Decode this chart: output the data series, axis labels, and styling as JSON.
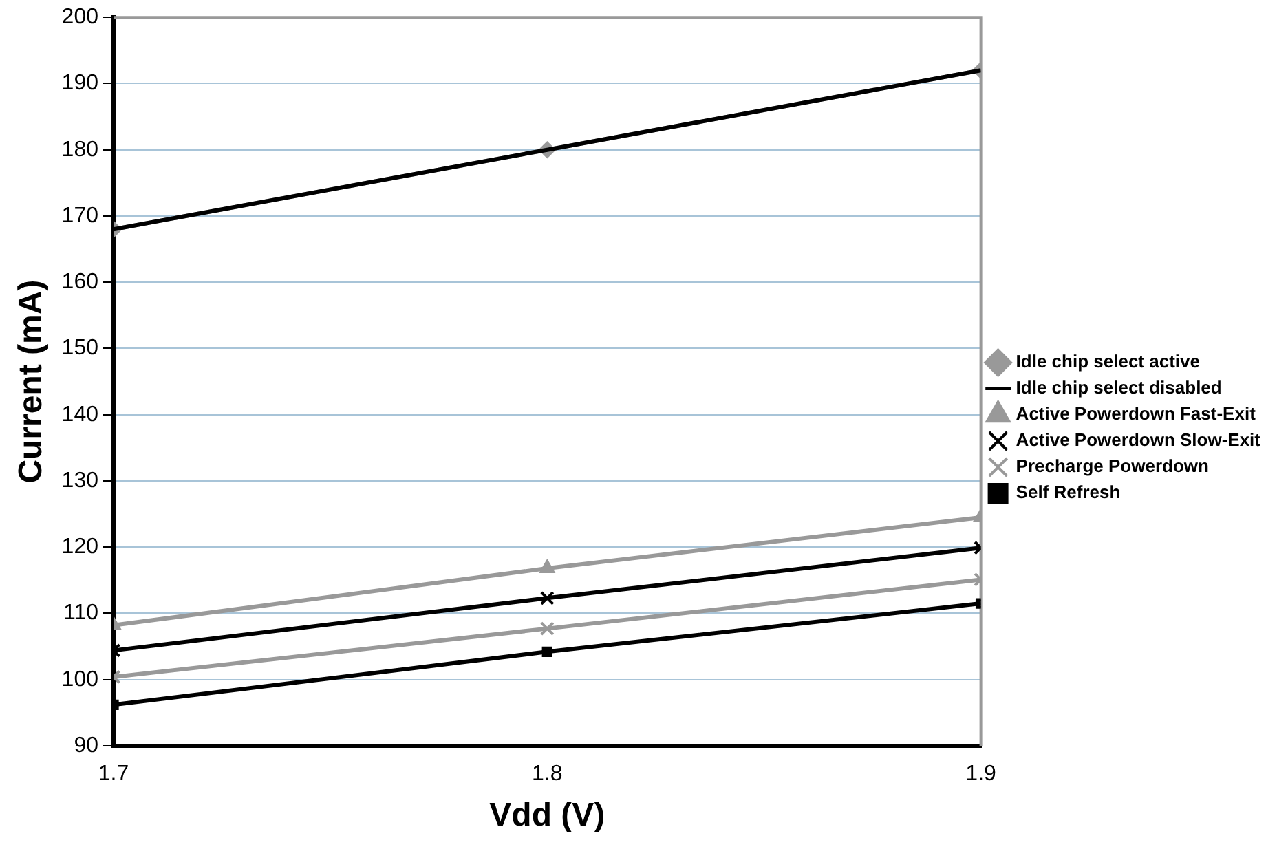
{
  "chart_data": {
    "type": "line",
    "xlabel": "Vdd (V)",
    "ylabel": "Current (mA)",
    "x": [
      1.7,
      1.8,
      1.9
    ],
    "xlim": [
      1.7,
      1.9
    ],
    "xticks": [
      1.7,
      1.8,
      1.9
    ],
    "ylim": [
      90,
      200
    ],
    "yticks": [
      90,
      100,
      110,
      120,
      130,
      140,
      150,
      160,
      170,
      180,
      190,
      200
    ],
    "grid": "y",
    "legend": "right",
    "series": [
      {
        "name": "Idle chip select active",
        "color": "#999999",
        "marker": "diamond",
        "values": [
          168,
          180,
          192
        ]
      },
      {
        "name": "Idle chip select disabled",
        "color": "#000000",
        "marker": "none",
        "values": [
          168,
          180,
          192
        ]
      },
      {
        "name": "Active Powerdown Fast-Exit",
        "color": "#999999",
        "marker": "triangle",
        "values": [
          108.2,
          116.8,
          124.5
        ]
      },
      {
        "name": "Active Powerdown Slow-Exit",
        "color": "#000000",
        "marker": "cross",
        "values": [
          104.4,
          112.3,
          119.9
        ]
      },
      {
        "name": "Precharge Powerdown",
        "color": "#999999",
        "marker": "cross",
        "values": [
          100.4,
          107.7,
          115.1
        ]
      },
      {
        "name": "Self Refresh",
        "color": "#000000",
        "marker": "square",
        "values": [
          96.2,
          104.2,
          111.5
        ]
      }
    ]
  }
}
